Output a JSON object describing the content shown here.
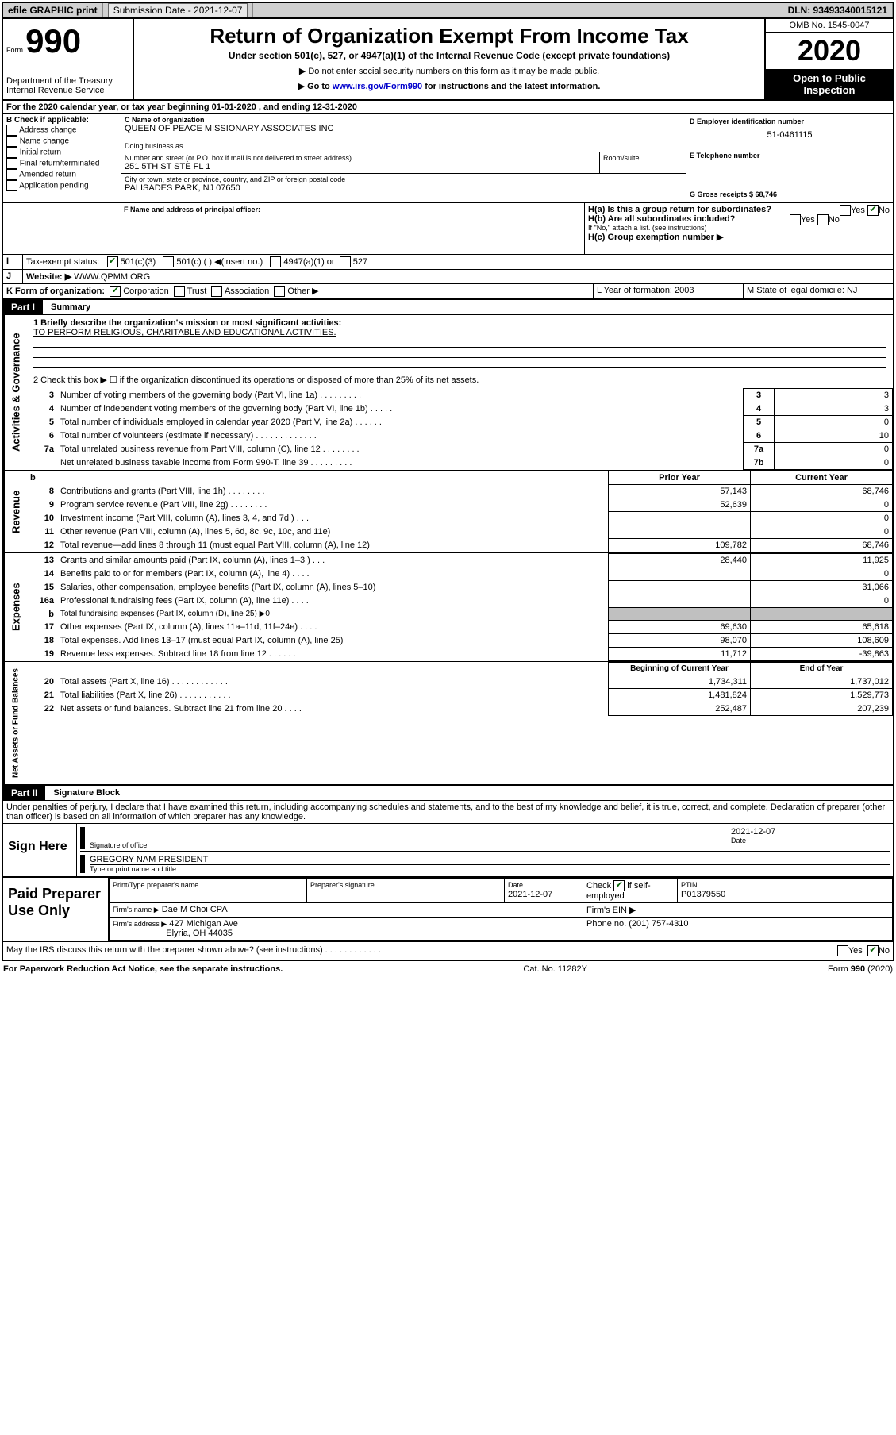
{
  "topbar": {
    "efile": "efile GRAPHIC print",
    "sub_date_label": "Submission Date - 2021-12-07",
    "dln_label": "DLN: 93493340015121"
  },
  "header": {
    "form_label": "Form",
    "form_number": "990",
    "dept": "Department of the Treasury\nInternal Revenue Service",
    "title": "Return of Organization Exempt From Income Tax",
    "subtitle": "Under section 501(c), 527, or 4947(a)(1) of the Internal Revenue Code (except private foundations)",
    "note1": "▶ Do not enter social security numbers on this form as it may be made public.",
    "note2_pre": "▶ Go to ",
    "note2_link": "www.irs.gov/Form990",
    "note2_post": " for instructions and the latest information.",
    "omb": "OMB No. 1545-0047",
    "year": "2020",
    "inspection": "Open to Public Inspection"
  },
  "sectionA": {
    "period": "For the 2020 calendar year, or tax year beginning 01-01-2020     , and ending 12-31-2020",
    "B_label": "B Check if applicable:",
    "B_items": [
      "Address change",
      "Name change",
      "Initial return",
      "Final return/terminated",
      "Amended return",
      "Application pending"
    ],
    "C_name_label": "C Name of organization",
    "C_name": "QUEEN OF PEACE MISSIONARY ASSOCIATES INC",
    "dba_label": "Doing business as",
    "street_label": "Number and street (or P.O. box if mail is not delivered to street address)",
    "room_label": "Room/suite",
    "street": "251 5TH ST STE FL 1",
    "city_label": "City or town, state or province, country, and ZIP or foreign postal code",
    "city": "PALISADES PARK, NJ  07650",
    "D_label": "D Employer identification number",
    "D_value": "51-0461115",
    "E_label": "E Telephone number",
    "G_label": "G Gross receipts $ 68,746",
    "F_label": "F Name and address of principal officer:",
    "Ha_label": "H(a)  Is this a group return for subordinates?",
    "Hb_label": "H(b)  Are all subordinates included?",
    "Hb_note": "If \"No,\" attach a list. (see instructions)",
    "Hc_label": "H(c)  Group exemption number ▶",
    "yes": "Yes",
    "no": "No",
    "I_label": "Tax-exempt status:",
    "I_501c3": "501(c)(3)",
    "I_501c_insert": "501(c) (   ) ◀(insert no.)",
    "I_4947": "4947(a)(1) or",
    "I_527": "527",
    "J_label": "Website: ▶",
    "J_value": "WWW.QPMM.ORG",
    "K_label": "K Form of organization:",
    "K_corp": "Corporation",
    "K_trust": "Trust",
    "K_assoc": "Association",
    "K_other": "Other ▶",
    "L_label": "L Year of formation: 2003",
    "M_label": "M State of legal domicile: NJ"
  },
  "part1": {
    "label": "Part I",
    "title": "Summary",
    "mission_label": "1  Briefly describe the organization's mission or most significant activities:",
    "mission": "TO PERFORM RELIGIOUS, CHARITABLE AND EDUCATIONAL ACTIVITIES.",
    "line2": "2   Check this box ▶ ☐  if the organization discontinued its operations or disposed of more than 25% of its net assets.",
    "governance_rows": [
      {
        "n": "3",
        "text": "Number of voting members of the governing body (Part VI, line 1a)   .   .   .   .   .   .   .   .   .",
        "box": "3",
        "val": "3"
      },
      {
        "n": "4",
        "text": "Number of independent voting members of the governing body (Part VI, line 1b)   .   .   .   .   .",
        "box": "4",
        "val": "3"
      },
      {
        "n": "5",
        "text": "Total number of individuals employed in calendar year 2020 (Part V, line 2a)   .   .   .   .   .   .",
        "box": "5",
        "val": "0"
      },
      {
        "n": "6",
        "text": "Total number of volunteers (estimate if necessary)   .   .   .   .   .   .   .   .   .   .   .   .   .",
        "box": "6",
        "val": "10"
      },
      {
        "n": "7a",
        "text": "Total unrelated business revenue from Part VIII, column (C), line 12   .   .   .   .   .   .   .   .",
        "box": "7a",
        "val": "0"
      },
      {
        "n": "",
        "text": "Net unrelated business taxable income from Form 990-T, line 39   .   .   .   .   .   .   .   .   .",
        "box": "7b",
        "val": "0"
      }
    ],
    "prior_year_hdr": "Prior Year",
    "current_year_hdr": "Current Year",
    "begin_year_hdr": "Beginning of Current Year",
    "end_year_hdr": "End of Year",
    "revenue_rows": [
      {
        "n": "8",
        "text": "Contributions and grants (Part VIII, line 1h)   .   .   .   .   .   .   .   .",
        "py": "57,143",
        "cy": "68,746"
      },
      {
        "n": "9",
        "text": "Program service revenue (Part VIII, line 2g)   .   .   .   .   .   .   .   .",
        "py": "52,639",
        "cy": "0"
      },
      {
        "n": "10",
        "text": "Investment income (Part VIII, column (A), lines 3, 4, and 7d )   .   .   .",
        "py": "",
        "cy": "0"
      },
      {
        "n": "11",
        "text": "Other revenue (Part VIII, column (A), lines 5, 6d, 8c, 9c, 10c, and 11e)",
        "py": "",
        "cy": "0"
      },
      {
        "n": "12",
        "text": "Total revenue—add lines 8 through 11 (must equal Part VIII, column (A), line 12)",
        "py": "109,782",
        "cy": "68,746"
      }
    ],
    "expense_rows": [
      {
        "n": "13",
        "text": "Grants and similar amounts paid (Part IX, column (A), lines 1–3 )   .   .   .",
        "py": "28,440",
        "cy": "11,925"
      },
      {
        "n": "14",
        "text": "Benefits paid to or for members (Part IX, column (A), line 4)   .   .   .   .",
        "py": "",
        "cy": "0"
      },
      {
        "n": "15",
        "text": "Salaries, other compensation, employee benefits (Part IX, column (A), lines 5–10)",
        "py": "",
        "cy": "31,066"
      },
      {
        "n": "16a",
        "text": "Professional fundraising fees (Part IX, column (A), line 11e)   .   .   .   .",
        "py": "",
        "cy": "0"
      },
      {
        "n": "b",
        "text": "Total fundraising expenses (Part IX, column (D), line 25) ▶0",
        "py": "GREY",
        "cy": "GREY"
      },
      {
        "n": "17",
        "text": "Other expenses (Part IX, column (A), lines 11a–11d, 11f–24e)   .   .   .   .",
        "py": "69,630",
        "cy": "65,618"
      },
      {
        "n": "18",
        "text": "Total expenses. Add lines 13–17 (must equal Part IX, column (A), line 25)",
        "py": "98,070",
        "cy": "108,609"
      },
      {
        "n": "19",
        "text": "Revenue less expenses. Subtract line 18 from line 12   .   .   .   .   .   .",
        "py": "11,712",
        "cy": "-39,863"
      }
    ],
    "net_rows": [
      {
        "n": "20",
        "text": "Total assets (Part X, line 16)   .   .   .   .   .   .   .   .   .   .   .   .",
        "py": "1,734,311",
        "cy": "1,737,012"
      },
      {
        "n": "21",
        "text": "Total liabilities (Part X, line 26)   .   .   .   .   .   .   .   .   .   .   .",
        "py": "1,481,824",
        "cy": "1,529,773"
      },
      {
        "n": "22",
        "text": "Net assets or fund balances. Subtract line 21 from line 20   .   .   .   .",
        "py": "252,487",
        "cy": "207,239"
      }
    ],
    "side_labels": {
      "governance": "Activities & Governance",
      "revenue": "Revenue",
      "expenses": "Expenses",
      "net": "Net Assets or Fund Balances"
    }
  },
  "part2": {
    "label": "Part II",
    "title": "Signature Block",
    "declaration": "Under penalties of perjury, I declare that I have examined this return, including accompanying schedules and statements, and to the best of my knowledge and belief, it is true, correct, and complete. Declaration of preparer (other than officer) is based on all information of which preparer has any knowledge.",
    "sign_here": "Sign Here",
    "sig_officer": "Signature of officer",
    "sig_date": "2021-12-07",
    "sig_date_label": "Date",
    "officer_name": "GREGORY NAM  PRESIDENT",
    "officer_label": "Type or print name and title",
    "paid_label": "Paid Preparer Use Only",
    "prep_name_label": "Print/Type preparer's name",
    "prep_sig_label": "Preparer's signature",
    "prep_date_label": "Date",
    "prep_date": "2021-12-07",
    "prep_check_label": "Check ☑ if self-employed",
    "ptin_label": "PTIN",
    "ptin": "P01379550",
    "firm_name_label": "Firm's name      ▶",
    "firm_name": "Dae M Choi CPA",
    "firm_ein_label": "Firm's EIN ▶",
    "firm_addr_label": "Firm's address ▶",
    "firm_addr1": "427 Michigan Ave",
    "firm_addr2": "Elyria, OH  44035",
    "phone_label": "Phone no. (201) 757-4310",
    "discuss": "May the IRS discuss this return with the preparer shown above? (see instructions)   .   .   .   .   .   .   .   .   .   .   .   ."
  },
  "footer": {
    "left": "For Paperwork Reduction Act Notice, see the separate instructions.",
    "mid": "Cat. No. 11282Y",
    "right": "Form 990 (2020)"
  }
}
